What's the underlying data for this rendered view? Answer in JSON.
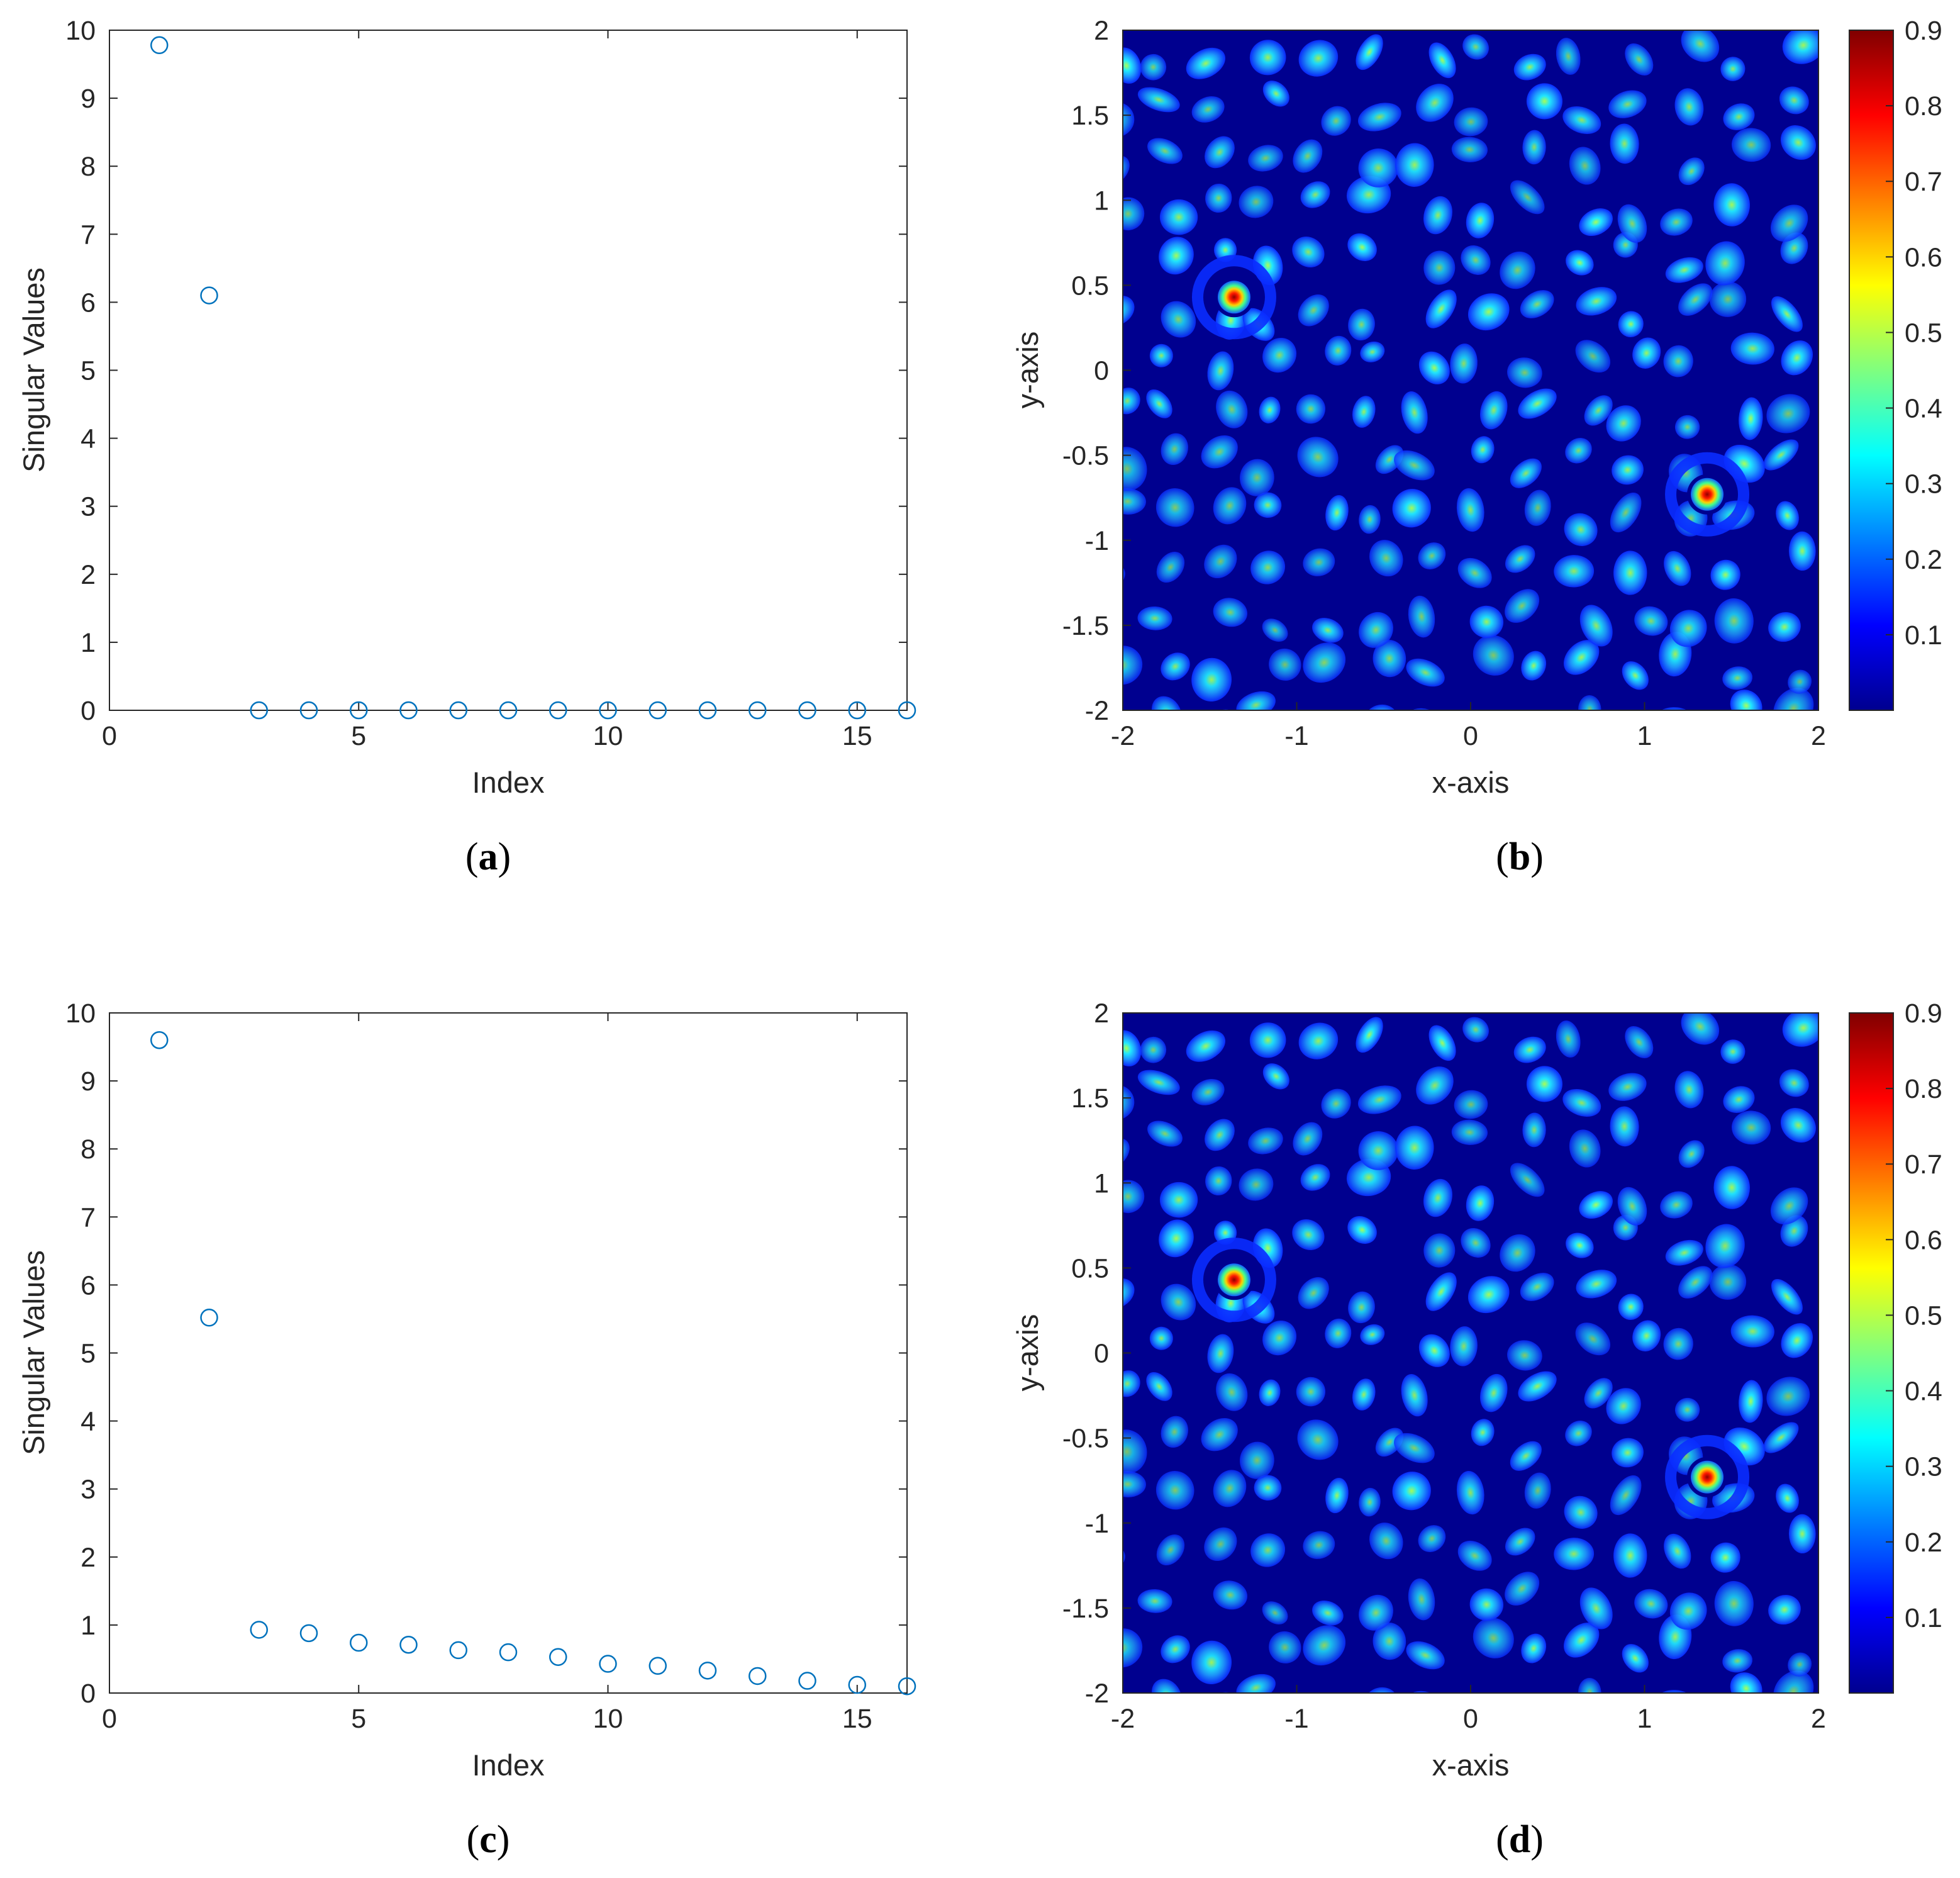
{
  "chart_data": [
    {
      "panel": "a",
      "type": "scatter",
      "xlabel": "Index",
      "ylabel": "Singular Values",
      "xlim": [
        0,
        16
      ],
      "ylim": [
        0,
        10
      ],
      "xticks": [
        0,
        5,
        10,
        15
      ],
      "yticks": [
        0,
        1,
        2,
        3,
        4,
        5,
        6,
        7,
        8,
        9,
        10
      ],
      "marker": "open circle",
      "color": "#0072bd",
      "x": [
        1,
        2,
        3,
        4,
        5,
        6,
        7,
        8,
        9,
        10,
        11,
        12,
        13,
        14,
        15,
        16
      ],
      "y": [
        9.78,
        6.1,
        0,
        0,
        0,
        0,
        0,
        0,
        0,
        0,
        0,
        0,
        0,
        0,
        0,
        0
      ]
    },
    {
      "panel": "b",
      "type": "heatmap",
      "xlabel": "x-axis",
      "ylabel": "y-axis",
      "xlim": [
        -2,
        2
      ],
      "ylim": [
        -2,
        2
      ],
      "xticks": [
        -2,
        -1,
        0,
        1,
        2
      ],
      "yticks": [
        -2,
        -1.5,
        -1,
        -0.5,
        0,
        0.5,
        1,
        1.5,
        2
      ],
      "colormap": "jet",
      "colorbar_ticks": [
        0.1,
        0.2,
        0.3,
        0.4,
        0.5,
        0.6,
        0.7,
        0.8,
        0.9
      ],
      "clim": [
        0,
        0.9
      ],
      "peaks": [
        {
          "x": -1.36,
          "y": 0.43,
          "value": 0.9
        },
        {
          "x": 1.36,
          "y": -0.73,
          "value": 0.9
        }
      ]
    },
    {
      "panel": "c",
      "type": "scatter",
      "xlabel": "Index",
      "ylabel": "Singular Values",
      "xlim": [
        0,
        16
      ],
      "ylim": [
        0,
        10
      ],
      "xticks": [
        0,
        5,
        10,
        15
      ],
      "yticks": [
        0,
        1,
        2,
        3,
        4,
        5,
        6,
        7,
        8,
        9,
        10
      ],
      "marker": "open circle",
      "color": "#0072bd",
      "x": [
        1,
        2,
        3,
        4,
        5,
        6,
        7,
        8,
        9,
        10,
        11,
        12,
        13,
        14,
        15,
        16
      ],
      "y": [
        9.6,
        5.52,
        0.93,
        0.88,
        0.74,
        0.71,
        0.63,
        0.6,
        0.53,
        0.43,
        0.4,
        0.33,
        0.25,
        0.18,
        0.12,
        0.1
      ]
    },
    {
      "panel": "d",
      "type": "heatmap",
      "xlabel": "x-axis",
      "ylabel": "y-axis",
      "xlim": [
        -2,
        2
      ],
      "ylim": [
        -2,
        2
      ],
      "xticks": [
        -2,
        -1,
        0,
        1,
        2
      ],
      "yticks": [
        -2,
        -1.5,
        -1,
        -0.5,
        0,
        0.5,
        1,
        1.5,
        2
      ],
      "colormap": "jet",
      "colorbar_ticks": [
        0.1,
        0.2,
        0.3,
        0.4,
        0.5,
        0.6,
        0.7,
        0.8,
        0.9
      ],
      "clim": [
        0,
        0.9
      ],
      "peaks": [
        {
          "x": -1.36,
          "y": 0.43,
          "value": 0.9
        },
        {
          "x": 1.36,
          "y": -0.73,
          "value": 0.9
        }
      ]
    }
  ],
  "captions": {
    "a": "a",
    "b": "b",
    "c": "c",
    "d": "d"
  }
}
